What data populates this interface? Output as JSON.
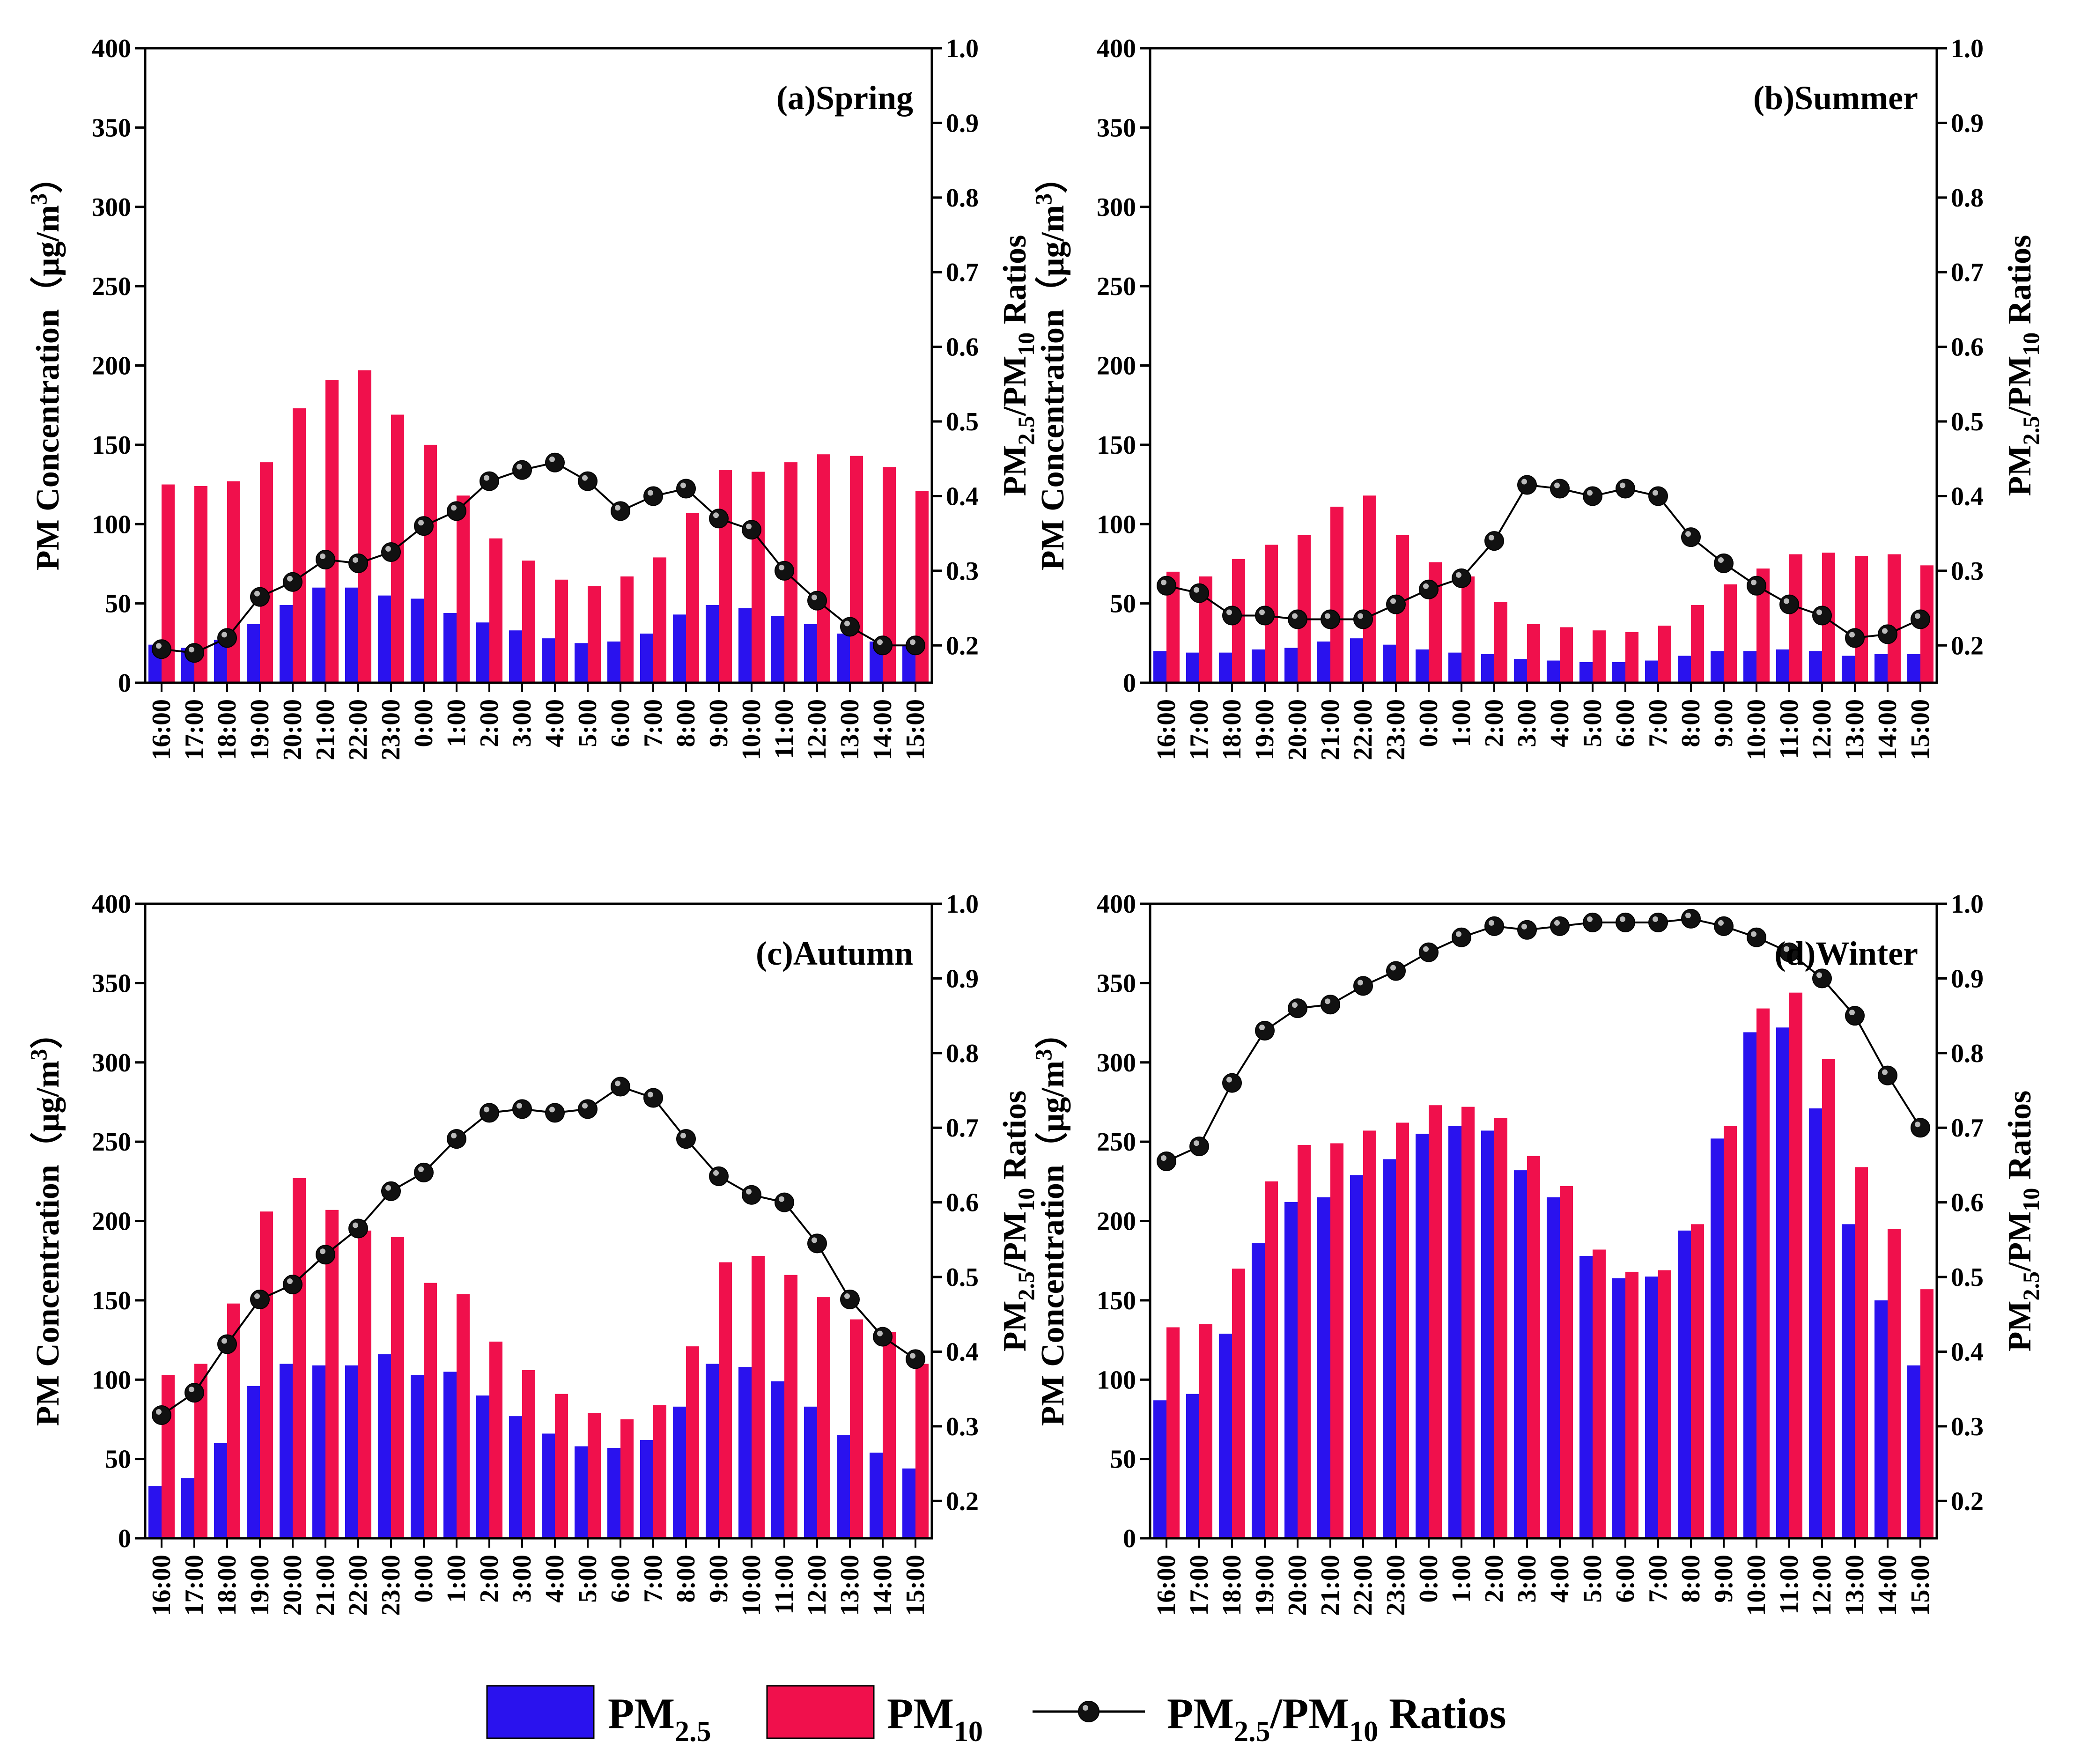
{
  "colors": {
    "pm25": "#2a12ee",
    "pm10": "#f0104c",
    "ratio_line": "#000000",
    "ratio_marker": "#111111"
  },
  "legend": {
    "pm25": {
      "main": "PM",
      "sub": "2.5"
    },
    "pm10": {
      "main": "PM",
      "sub": "10"
    },
    "ratio": {
      "parts": [
        "PM",
        "2.5",
        "/PM",
        "10",
        " Ratios"
      ]
    }
  },
  "axis_titles": {
    "left": {
      "main": "PM Concentration（μg/m",
      "sup": "3",
      "close": "）"
    },
    "right": {
      "parts": [
        "PM",
        "2.5",
        "/PM",
        "10",
        " Ratios"
      ]
    }
  },
  "chart_data": [
    {
      "type": "bar",
      "title": "(a)Spring",
      "categories": [
        "16:00",
        "17:00",
        "18:00",
        "19:00",
        "20:00",
        "21:00",
        "22:00",
        "23:00",
        "0:00",
        "1:00",
        "2:00",
        "3:00",
        "4:00",
        "5:00",
        "6:00",
        "7:00",
        "8:00",
        "9:00",
        "10:00",
        "11:00",
        "12:00",
        "13:00",
        "14:00",
        "15:00"
      ],
      "series": [
        {
          "name": "PM2.5",
          "values": [
            24,
            22,
            27,
            37,
            49,
            60,
            60,
            55,
            53,
            44,
            38,
            33,
            28,
            25,
            26,
            31,
            43,
            49,
            47,
            42,
            37,
            31,
            26,
            24
          ]
        },
        {
          "name": "PM10",
          "values": [
            125,
            124,
            127,
            139,
            173,
            191,
            197,
            169,
            150,
            118,
            91,
            77,
            65,
            61,
            67,
            79,
            107,
            134,
            133,
            139,
            144,
            143,
            136,
            121
          ]
        },
        {
          "name": "PM2.5/PM10 Ratios",
          "type": "line",
          "axis": "right",
          "values": [
            0.195,
            0.19,
            0.21,
            0.265,
            0.285,
            0.315,
            0.31,
            0.325,
            0.36,
            0.38,
            0.42,
            0.435,
            0.445,
            0.42,
            0.38,
            0.4,
            0.41,
            0.37,
            0.355,
            0.3,
            0.26,
            0.225,
            0.2,
            0.2
          ]
        }
      ],
      "ylim": [
        0,
        400
      ],
      "yticks": [
        0,
        50,
        100,
        150,
        200,
        250,
        300,
        350,
        400
      ],
      "y2lim": [
        0.15,
        1.0
      ],
      "y2ticks": [
        "0.2",
        "0.3",
        "0.4",
        "0.5",
        "0.6",
        "0.7",
        "0.8",
        "0.9",
        "1.0"
      ]
    },
    {
      "type": "bar",
      "title": "(b)Summer",
      "categories": [
        "16:00",
        "17:00",
        "18:00",
        "19:00",
        "20:00",
        "21:00",
        "22:00",
        "23:00",
        "0:00",
        "1:00",
        "2:00",
        "3:00",
        "4:00",
        "5:00",
        "6:00",
        "7:00",
        "8:00",
        "9:00",
        "10:00",
        "11:00",
        "12:00",
        "13:00",
        "14:00",
        "15:00"
      ],
      "series": [
        {
          "name": "PM2.5",
          "values": [
            20,
            19,
            19,
            21,
            22,
            26,
            28,
            24,
            21,
            19,
            18,
            15,
            14,
            13,
            13,
            14,
            17,
            20,
            20,
            21,
            20,
            17,
            18,
            18
          ]
        },
        {
          "name": "PM10",
          "values": [
            70,
            67,
            78,
            87,
            93,
            111,
            118,
            93,
            76,
            67,
            51,
            37,
            35,
            33,
            32,
            36,
            49,
            62,
            72,
            81,
            82,
            80,
            81,
            74
          ]
        },
        {
          "name": "PM2.5/PM10 Ratios",
          "type": "line",
          "axis": "right",
          "values": [
            0.28,
            0.27,
            0.24,
            0.24,
            0.235,
            0.235,
            0.235,
            0.255,
            0.275,
            0.29,
            0.34,
            0.415,
            0.41,
            0.4,
            0.41,
            0.4,
            0.345,
            0.31,
            0.28,
            0.255,
            0.24,
            0.21,
            0.215,
            0.235
          ]
        }
      ],
      "ylim": [
        0,
        400
      ],
      "yticks": [
        0,
        50,
        100,
        150,
        200,
        250,
        300,
        350,
        400
      ],
      "y2lim": [
        0.15,
        1.0
      ],
      "y2ticks": [
        "0.2",
        "0.3",
        "0.4",
        "0.5",
        "0.6",
        "0.7",
        "0.8",
        "0.9",
        "1.0"
      ]
    },
    {
      "type": "bar",
      "title": "(c)Autumn",
      "categories": [
        "16:00",
        "17:00",
        "18:00",
        "19:00",
        "20:00",
        "21:00",
        "22:00",
        "23:00",
        "0:00",
        "1:00",
        "2:00",
        "3:00",
        "4:00",
        "5:00",
        "6:00",
        "7:00",
        "8:00",
        "9:00",
        "10:00",
        "11:00",
        "12:00",
        "13:00",
        "14:00",
        "15:00"
      ],
      "series": [
        {
          "name": "PM2.5",
          "values": [
            33,
            38,
            60,
            96,
            110,
            109,
            109,
            116,
            103,
            105,
            90,
            77,
            66,
            58,
            57,
            62,
            83,
            110,
            108,
            99,
            83,
            65,
            54,
            44
          ]
        },
        {
          "name": "PM10",
          "values": [
            103,
            110,
            148,
            206,
            227,
            207,
            194,
            190,
            161,
            154,
            124,
            106,
            91,
            79,
            75,
            84,
            121,
            174,
            178,
            166,
            152,
            138,
            130,
            110
          ]
        },
        {
          "name": "PM2.5/PM10 Ratios",
          "type": "line",
          "axis": "right",
          "values": [
            0.315,
            0.345,
            0.41,
            0.47,
            0.49,
            0.53,
            0.565,
            0.615,
            0.64,
            0.685,
            0.72,
            0.725,
            0.72,
            0.725,
            0.755,
            0.74,
            0.685,
            0.635,
            0.61,
            0.6,
            0.545,
            0.47,
            0.42,
            0.39
          ]
        }
      ],
      "ylim": [
        0,
        400
      ],
      "yticks": [
        0,
        50,
        100,
        150,
        200,
        250,
        300,
        350,
        400
      ],
      "y2lim": [
        0.15,
        1.0
      ],
      "y2ticks": [
        "0.2",
        "0.3",
        "0.4",
        "0.5",
        "0.6",
        "0.7",
        "0.8",
        "0.9",
        "1.0"
      ]
    },
    {
      "type": "bar",
      "title": "(d)Winter",
      "categories": [
        "16:00",
        "17:00",
        "18:00",
        "19:00",
        "20:00",
        "21:00",
        "22:00",
        "23:00",
        "0:00",
        "1:00",
        "2:00",
        "3:00",
        "4:00",
        "5:00",
        "6:00",
        "7:00",
        "8:00",
        "9:00",
        "10:00",
        "11:00",
        "12:00",
        "13:00",
        "14:00",
        "15:00"
      ],
      "series": [
        {
          "name": "PM2.5",
          "values": [
            87,
            91,
            129,
            186,
            212,
            215,
            229,
            239,
            255,
            260,
            257,
            232,
            215,
            178,
            164,
            165,
            194,
            252,
            319,
            322,
            271,
            198,
            150,
            109
          ]
        },
        {
          "name": "PM10",
          "values": [
            133,
            135,
            170,
            225,
            248,
            249,
            257,
            262,
            273,
            272,
            265,
            241,
            222,
            182,
            168,
            169,
            198,
            260,
            334,
            344,
            302,
            234,
            195,
            157
          ]
        },
        {
          "name": "PM2.5/PM10 Ratios",
          "type": "line",
          "axis": "right",
          "values": [
            0.655,
            0.675,
            0.76,
            0.83,
            0.86,
            0.865,
            0.89,
            0.91,
            0.935,
            0.955,
            0.97,
            0.965,
            0.97,
            0.975,
            0.975,
            0.975,
            0.98,
            0.97,
            0.955,
            0.935,
            0.9,
            0.85,
            0.77,
            0.7
          ]
        }
      ],
      "ylim": [
        0,
        400
      ],
      "yticks": [
        0,
        50,
        100,
        150,
        200,
        250,
        300,
        350,
        400
      ],
      "y2lim": [
        0.15,
        1.0
      ],
      "y2ticks": [
        "0.2",
        "0.3",
        "0.4",
        "0.5",
        "0.6",
        "0.7",
        "0.8",
        "0.9",
        "1.0"
      ]
    }
  ]
}
